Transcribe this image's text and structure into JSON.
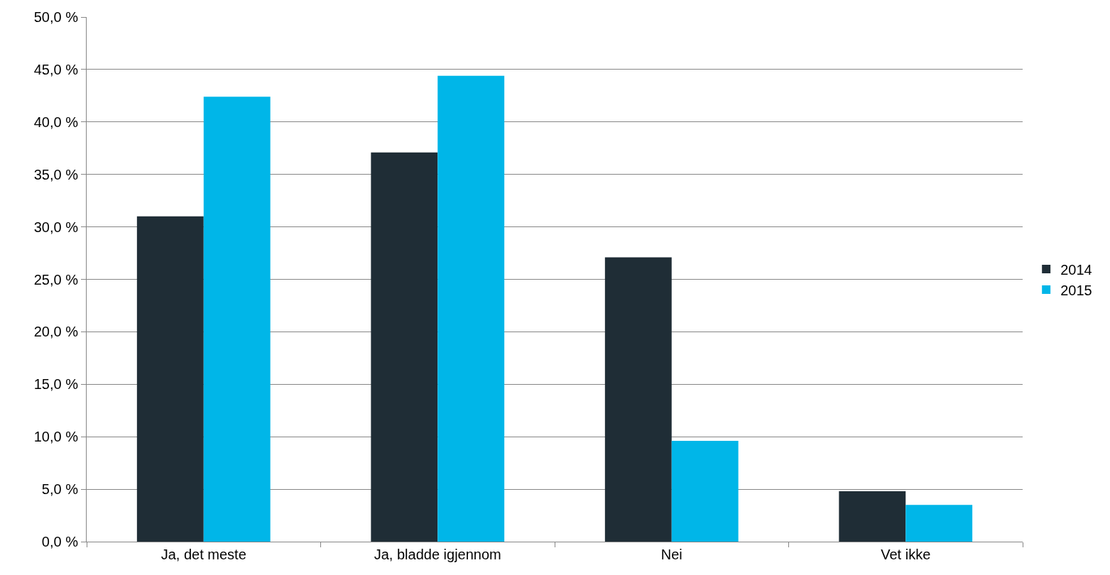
{
  "chart_data": {
    "type": "bar",
    "categories": [
      "Ja, det meste",
      "Ja, bladde igjennom",
      "Nei",
      "Vet ikke"
    ],
    "series": [
      {
        "name": "2014",
        "color": "#1f2d36",
        "values": [
          31.0,
          37.1,
          27.1,
          4.8
        ]
      },
      {
        "name": "2015",
        "color": "#00b6e8",
        "values": [
          42.4,
          44.4,
          9.6,
          3.5
        ]
      }
    ],
    "ylim": [
      0,
      50
    ],
    "yticks": [
      {
        "value": 0,
        "label": "0,0 %"
      },
      {
        "value": 5,
        "label": "5,0 %"
      },
      {
        "value": 10,
        "label": "10,0 %"
      },
      {
        "value": 15,
        "label": "15,0 %"
      },
      {
        "value": 20,
        "label": "20,0 %"
      },
      {
        "value": 25,
        "label": "25,0 %"
      },
      {
        "value": 30,
        "label": "30,0 %"
      },
      {
        "value": 35,
        "label": "35,0 %"
      },
      {
        "value": 40,
        "label": "40,0 %"
      },
      {
        "value": 45,
        "label": "45,0 %"
      },
      {
        "value": 50,
        "label": "50,0 %"
      }
    ],
    "grid": "y",
    "legend": "right"
  }
}
